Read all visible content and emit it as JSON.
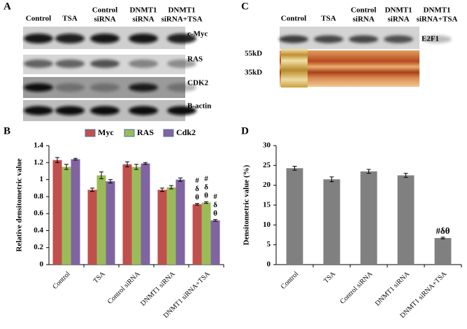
{
  "blots": [
    {
      "label": "A",
      "lanes": [
        [
          "Control"
        ],
        [
          "TSA"
        ],
        [
          "Control",
          "siRNA"
        ],
        [
          "DNMT1",
          "siRNA"
        ],
        [
          "DNMT1",
          "siRNA+TSA"
        ]
      ],
      "rows": [
        "c-Myc",
        "RAS",
        "CDK2",
        "B-actin"
      ]
    },
    {
      "label": "C",
      "lanes": [
        [
          "Control"
        ],
        [
          "TSA"
        ],
        [
          "Control",
          "siRNA"
        ],
        [
          "DNMT1",
          "siRNA"
        ],
        [
          "DNMT1",
          "siRNA+TSA"
        ]
      ],
      "rows": [
        "E2F1"
      ],
      "markers": [
        "55kD",
        "35kD"
      ]
    }
  ],
  "chart_data": [
    {
      "type": "bar",
      "panel_label": "B",
      "y_label": "Relative densitometric value",
      "categories": [
        "Control",
        "TSA",
        "Control siRNA",
        "DNMT1 siRNA",
        "DNMT1 siRNA+TSA"
      ],
      "series": [
        {
          "name": "Myc",
          "color": "#c0504d",
          "values": [
            1.23,
            0.88,
            1.18,
            0.88,
            0.71
          ],
          "errors": [
            0.03,
            0.02,
            0.03,
            0.02,
            0.01
          ]
        },
        {
          "name": "RAS",
          "color": "#9bbb59",
          "values": [
            1.15,
            1.05,
            1.15,
            0.91,
            0.73
          ],
          "errors": [
            0.03,
            0.04,
            0.03,
            0.02,
            0.01
          ]
        },
        {
          "name": "Cdk2",
          "color": "#8064a2",
          "values": [
            1.24,
            0.98,
            1.19,
            1.0,
            0.52
          ],
          "errors": [
            0.01,
            0.02,
            0.01,
            0.02,
            0.01
          ]
        }
      ],
      "annotations": [
        {
          "series": 0,
          "index": 4,
          "lines": [
            "#",
            "δ",
            "θ"
          ]
        },
        {
          "series": 1,
          "index": 4,
          "lines": [
            "#",
            "δ",
            "θ"
          ]
        },
        {
          "series": 2,
          "index": 4,
          "lines": [
            "#",
            "δ",
            "θ"
          ]
        }
      ],
      "ylim": [
        0,
        1.4
      ],
      "yticks": [
        0,
        0.2,
        0.4,
        0.6,
        0.8,
        1,
        1.2,
        1.4
      ],
      "legend": "top"
    },
    {
      "type": "bar",
      "panel_label": "D",
      "y_label": "Densitometric value (%)",
      "categories": [
        "Control",
        "TSA",
        "Control siRNA",
        "DNMT1 siRNA",
        "DNMT1 siRNA+TSA"
      ],
      "values": [
        24.3,
        21.5,
        23.5,
        22.5,
        6.7
      ],
      "errors": [
        0.5,
        0.6,
        0.5,
        0.5,
        0.2
      ],
      "color": "#808080",
      "annotations": [
        {
          "index": 4,
          "lines": [
            "#δθ"
          ]
        }
      ],
      "ylim": [
        0,
        30
      ],
      "yticks": [
        0,
        5,
        10,
        15,
        20,
        25,
        30
      ]
    }
  ]
}
